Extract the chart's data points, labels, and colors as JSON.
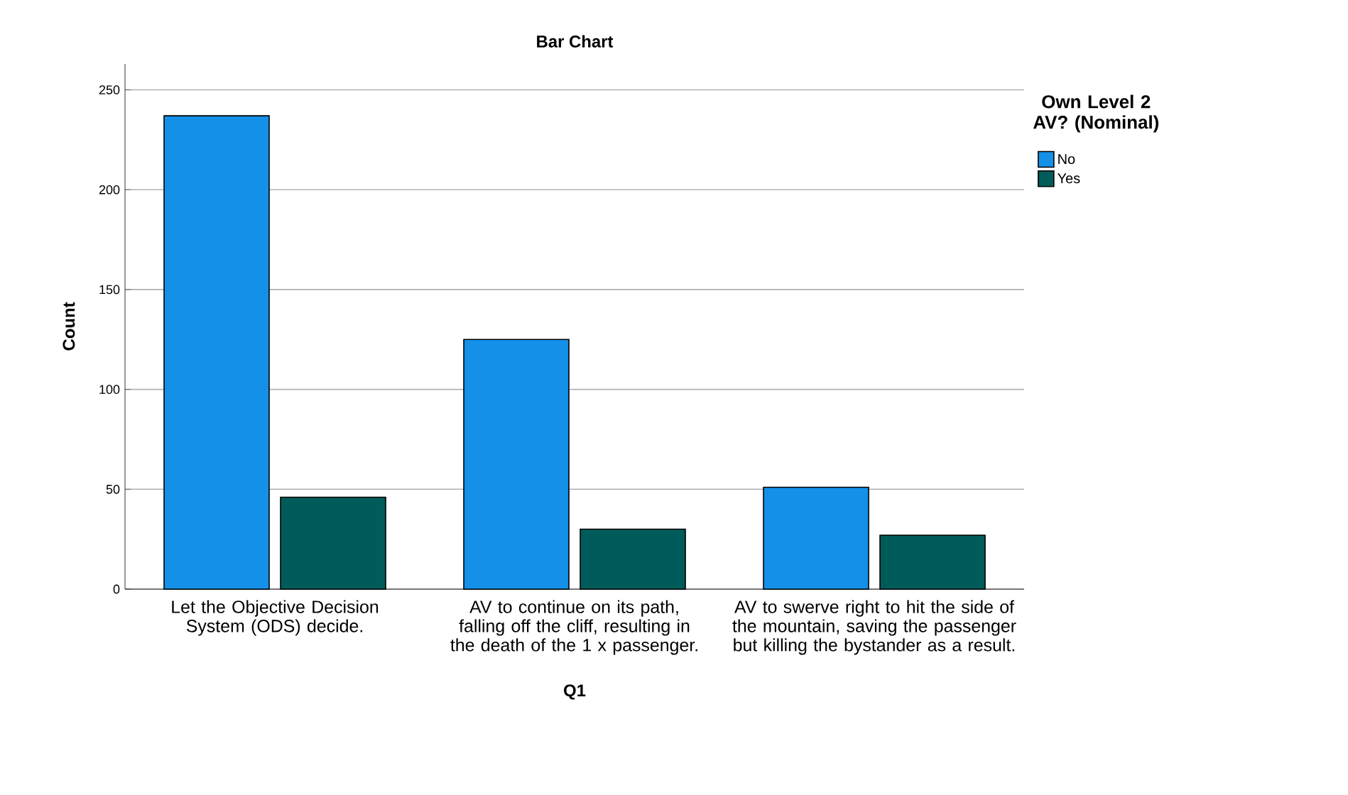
{
  "chart_data": {
    "type": "bar",
    "title": "Bar Chart",
    "xlabel": "Q1",
    "ylabel": "Count",
    "legend_title": "Own Level 2 AV? (Nominal)",
    "categories": [
      "Let the Objective Decision System (ODS) decide.",
      "AV to continue on its path, falling off the cliff, resulting in the death of the 1 x passenger.",
      "AV to swerve right to hit the side of the mountain, saving the passenger but killing the bystander as a result."
    ],
    "series": [
      {
        "name": "No",
        "color": "#1490e8",
        "values": [
          237,
          125,
          51
        ]
      },
      {
        "name": "Yes",
        "color": "#005c5a",
        "values": [
          46,
          30,
          27
        ]
      }
    ],
    "ylim": [
      0,
      263
    ],
    "yticks": [
      0,
      50,
      100,
      150,
      200,
      250
    ],
    "grid": "y",
    "legend": "top right"
  }
}
